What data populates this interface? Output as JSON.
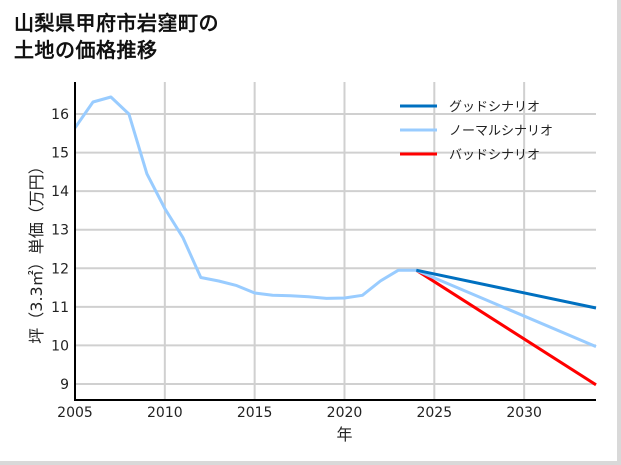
{
  "title_line1": "山梨県甲府市岩窪町の",
  "title_line2": "土地の価格推移",
  "chart_data": {
    "type": "line",
    "title": "山梨県甲府市岩窪町の土地の価格推移",
    "xlabel": "年",
    "ylabel": "坪（3.3㎡）単価（万円）",
    "xlim": [
      2005,
      2034
    ],
    "ylim": [
      8.6,
      16.8
    ],
    "xticks": [
      2005,
      2010,
      2015,
      2020,
      2025,
      2030
    ],
    "yticks": [
      9,
      10,
      11,
      12,
      13,
      14,
      15,
      16
    ],
    "grid": true,
    "legend_position": "upper right",
    "series": [
      {
        "name": "グッドシナリオ",
        "color": "#0070c0",
        "x": [
          2024,
          2034
        ],
        "values": [
          11.95,
          10.97
        ]
      },
      {
        "name": "ノーマルシナリオ",
        "color": "#99ccff",
        "x": [
          2005,
          2006,
          2007,
          2008,
          2009,
          2010,
          2011,
          2012,
          2013,
          2014,
          2015,
          2016,
          2017,
          2018,
          2019,
          2020,
          2021,
          2022,
          2023,
          2024,
          2034
        ],
        "values": [
          15.64,
          16.31,
          16.44,
          16.0,
          14.45,
          13.55,
          12.8,
          11.76,
          11.67,
          11.55,
          11.36,
          11.3,
          11.29,
          11.26,
          11.22,
          11.23,
          11.3,
          11.67,
          11.95,
          11.95,
          9.97
        ]
      },
      {
        "name": "バッドシナリオ",
        "color": "#ff0000",
        "x": [
          2024,
          2034
        ],
        "values": [
          11.95,
          8.98
        ]
      }
    ]
  }
}
